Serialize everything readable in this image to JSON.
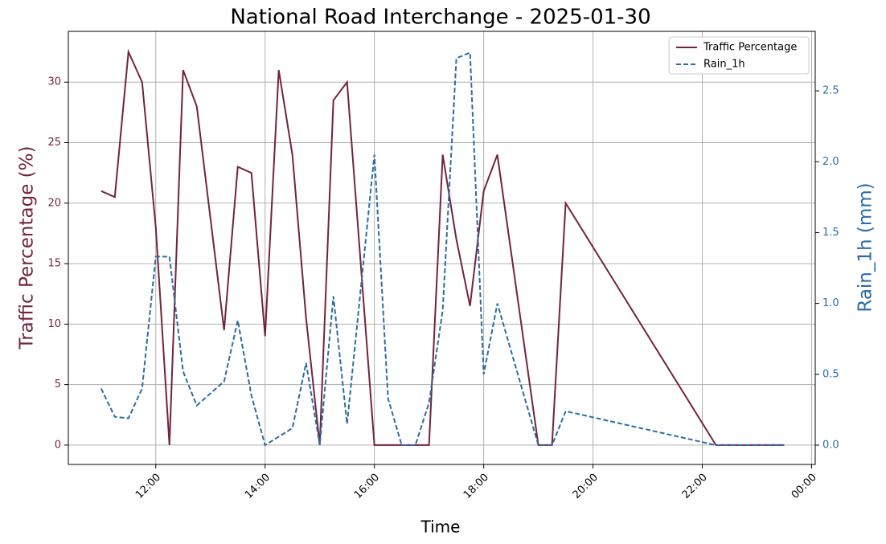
{
  "chart_data": {
    "type": "line",
    "title": "National Road Interchange - 2025-01-30",
    "x_label": "Time",
    "y_label": "Traffic Percentage (%)",
    "y2_label": "Rain_1h (mm)",
    "x": [
      "11:00",
      "11:15",
      "11:30",
      "11:45",
      "12:00",
      "12:15",
      "12:30",
      "12:45",
      "13:15",
      "13:30",
      "13:45",
      "14:00",
      "14:15",
      "14:30",
      "14:45",
      "15:00",
      "15:15",
      "15:30",
      "16:00",
      "16:15",
      "16:30",
      "16:45",
      "17:00",
      "17:15",
      "17:30",
      "17:45",
      "18:00",
      "18:15",
      "19:00",
      "19:15",
      "19:30",
      "22:15",
      "22:30",
      "22:45",
      "23:00",
      "23:15",
      "23:30"
    ],
    "series": [
      {
        "name": "Traffic Percentage",
        "color": "#722340",
        "dash": false,
        "axis": "y",
        "values": [
          21,
          20.5,
          32.5,
          30,
          18,
          0,
          31,
          28,
          9.5,
          23,
          22.5,
          9,
          31,
          24,
          10.5,
          0,
          28.5,
          30,
          0,
          0,
          0,
          0,
          0,
          24,
          17,
          11.5,
          21,
          24,
          0,
          0,
          20,
          0,
          0,
          0,
          0,
          0,
          0
        ]
      },
      {
        "name": "Rain_1h",
        "color": "#2b6ca8",
        "dash": true,
        "axis": "y2",
        "values": [
          0.4,
          0.2,
          0.19,
          0.4,
          1.33,
          1.33,
          0.52,
          0.28,
          0.45,
          0.88,
          0.35,
          0,
          0.06,
          0.12,
          0.58,
          0,
          1.05,
          0.15,
          2.05,
          0.33,
          0,
          0,
          0.3,
          0.95,
          2.73,
          2.77,
          0.5,
          1.0,
          0,
          0,
          0.24,
          0,
          0,
          0,
          0,
          0,
          0
        ]
      }
    ],
    "xlim": [
      "10:24",
      "00:04"
    ],
    "xticks": [
      "12:00",
      "14:00",
      "16:00",
      "18:00",
      "20:00",
      "22:00",
      "00:00"
    ],
    "ylim": [
      -1.6,
      34.2
    ],
    "yticks": [
      0,
      5,
      10,
      15,
      20,
      25,
      30
    ],
    "y2lim": [
      -0.136,
      2.92
    ],
    "y2ticks": [
      {
        "value": 0,
        "label": "0.0"
      },
      {
        "value": 0.5,
        "label": "0.5"
      },
      {
        "value": 1,
        "label": "1.0"
      },
      {
        "value": 1.5,
        "label": "1.5"
      },
      {
        "value": 2,
        "label": "2.0"
      },
      {
        "value": 2.5,
        "label": "2.5"
      }
    ],
    "grid": true,
    "legend": "upper right"
  }
}
